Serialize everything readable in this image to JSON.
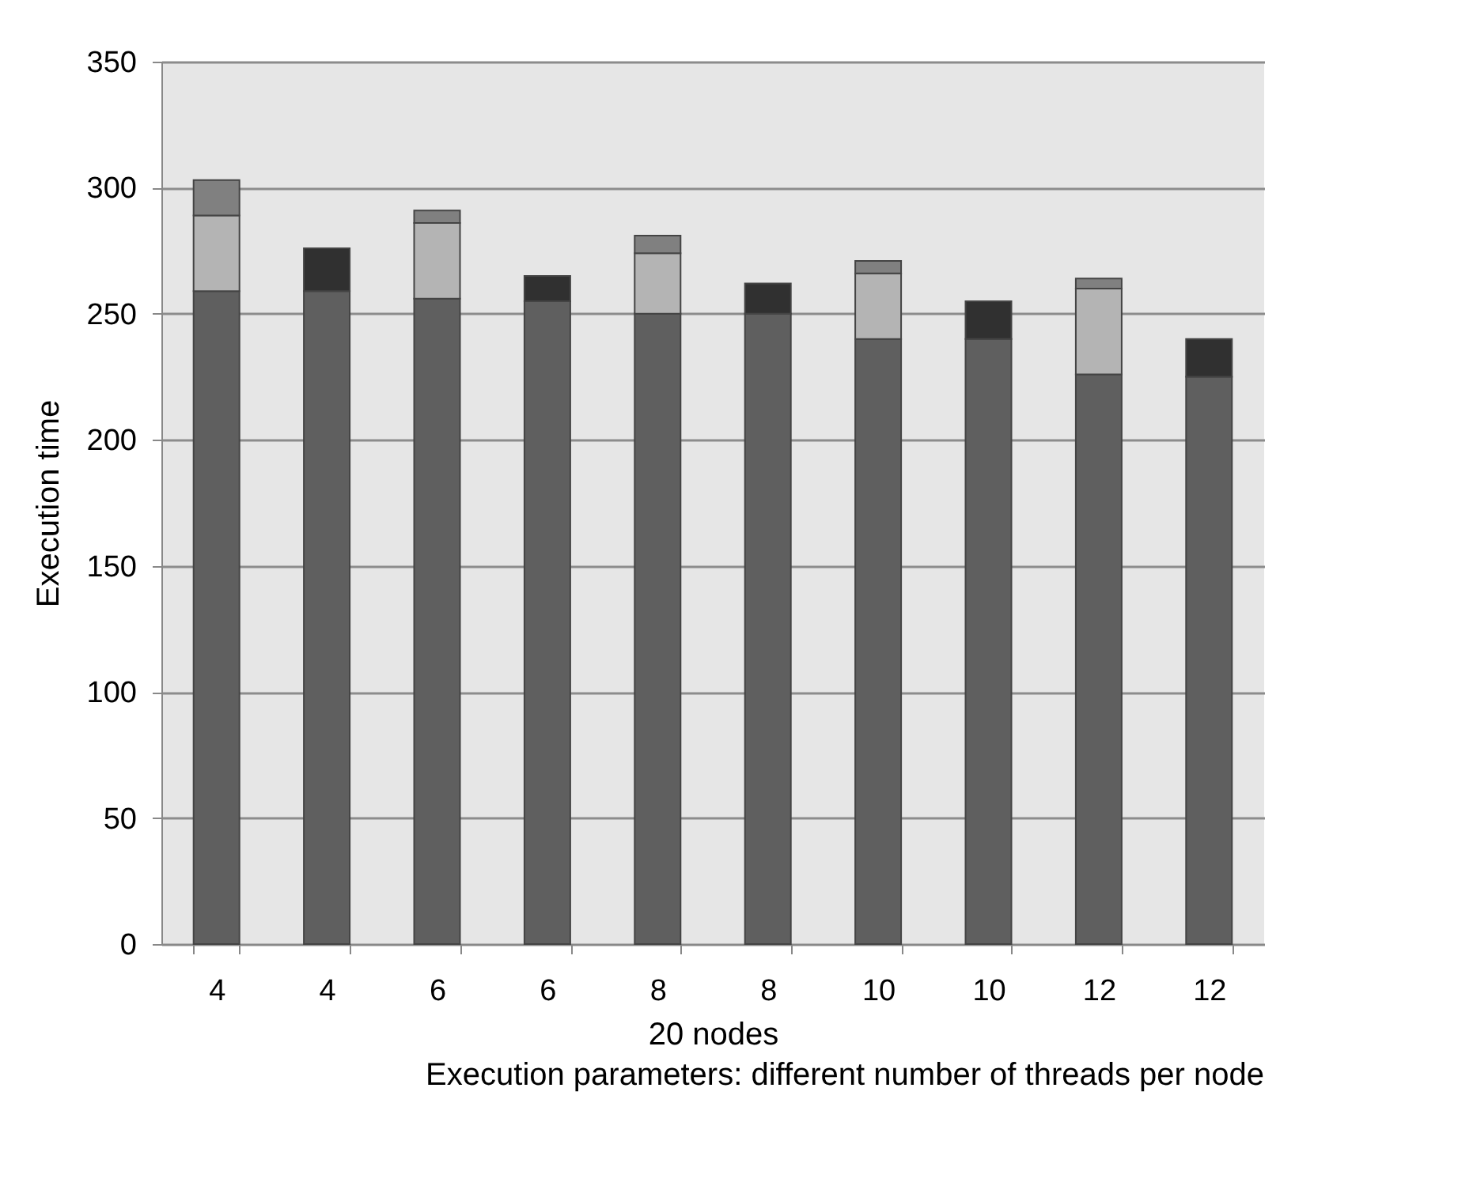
{
  "chart_data": {
    "type": "bar",
    "stacked": true,
    "xlabel": "20 nodes",
    "ylabel": "Execution time",
    "annotations": [
      "Execution parameters: different number of threads per node"
    ],
    "categories": [
      "4",
      "4",
      "6",
      "6",
      "8",
      "8",
      "10",
      "10",
      "12",
      "12"
    ],
    "series": [
      {
        "color": "#5f5f5f",
        "values": [
          259,
          259,
          256,
          255,
          250,
          250,
          240,
          240,
          226,
          225
        ]
      },
      {
        "color": "#b4b4b4",
        "values": [
          30,
          null,
          30,
          null,
          24,
          null,
          26,
          null,
          34,
          null
        ]
      },
      {
        "color": "#808080",
        "values": [
          14,
          null,
          5,
          null,
          7,
          null,
          5,
          null,
          4,
          null
        ]
      },
      {
        "color": "#303030",
        "values": [
          null,
          17,
          null,
          10,
          null,
          12,
          null,
          15,
          null,
          15
        ]
      }
    ],
    "ylim": [
      0,
      350
    ],
    "yticks": [
      0,
      50,
      100,
      150,
      200,
      250,
      300,
      350
    ],
    "grid": "y",
    "legend": false
  }
}
